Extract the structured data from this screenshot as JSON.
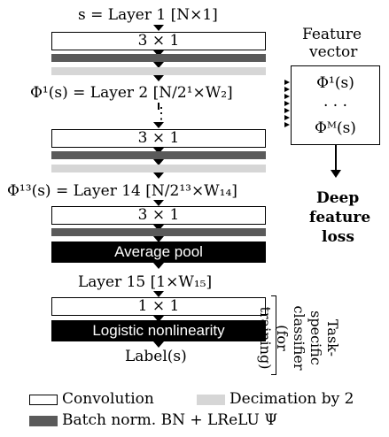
{
  "layers": {
    "layer1": "s = Layer 1 [N×1]",
    "layer2": "Φ¹(s) = Layer 2 [N/2¹×W₂]",
    "dots": "⋮",
    "layer14": "Φ¹³(s) = Layer 14 [N/2¹³×W₁₄]",
    "layer15": "Layer 15 [1×W₁₅]",
    "label": "Label(s)"
  },
  "blocks": {
    "conv1": "3 × 1",
    "conv2": "3 × 1",
    "conv3": "3 × 1",
    "avg_pool": "Average pool",
    "conv_final": "1 × 1",
    "logistic": "Logistic nonlinearity"
  },
  "feature_vector": {
    "title_line1": "Feature",
    "title_line2": "vector",
    "row1": "Φ¹(s)",
    "row2": "· · ·",
    "row3": "Φᴹ(s)"
  },
  "loss": {
    "line1": "Deep",
    "line2": "feature",
    "line3": "loss"
  },
  "classifier": {
    "line1": "Task-specific",
    "line2": "classifier",
    "line3": "(for training)"
  },
  "legend": {
    "convolution": "Convolution",
    "decimation": "Decimation by 2",
    "batchnorm": "Batch norm. BN + LReLU Ψ"
  },
  "colors": {
    "batchnorm": "#5a5a5a",
    "decimation": "#d6d6d6",
    "block": "#000000"
  }
}
